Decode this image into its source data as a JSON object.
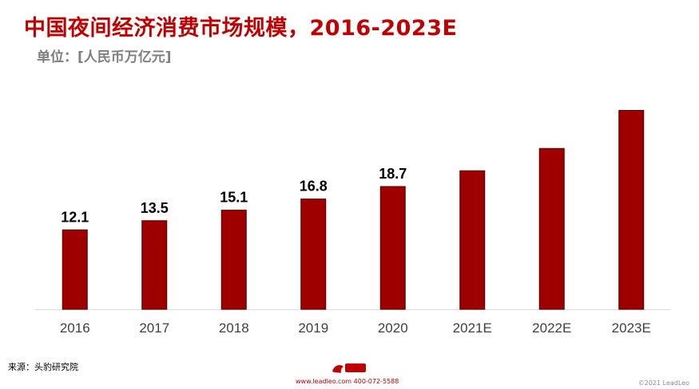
{
  "header": {
    "title": "中国夜间经济消费市场规模，2016-2023E",
    "unit": "单位：[人民币万亿元]"
  },
  "chart_data": {
    "type": "bar",
    "categories": [
      "2016",
      "2017",
      "2018",
      "2019",
      "2020",
      "2021E",
      "2022E",
      "2023E"
    ],
    "values": [
      12.1,
      13.5,
      15.1,
      16.8,
      18.7,
      21.1,
      24.5,
      30.3
    ],
    "data_labels": [
      "12.1",
      "13.5",
      "15.1",
      "16.8",
      "18.7",
      "",
      "",
      ""
    ],
    "title": "中国夜间经济消费市场规模，2016-2023E",
    "ylabel": "",
    "xlabel": "",
    "ylim": [
      0,
      34
    ],
    "grid": false,
    "colors": {
      "bar": "#9e0000",
      "bar_border": "#4d0000",
      "axis": "#d9d9d9"
    }
  },
  "footer": {
    "source": "来源：头豹研究院",
    "contact": "www.leadleo.com  400-072-5588",
    "copyright": "©2021 LeadLeo"
  },
  "brand": {
    "logo_icon": "leadleo-logo-icon",
    "color": "#c00000"
  }
}
